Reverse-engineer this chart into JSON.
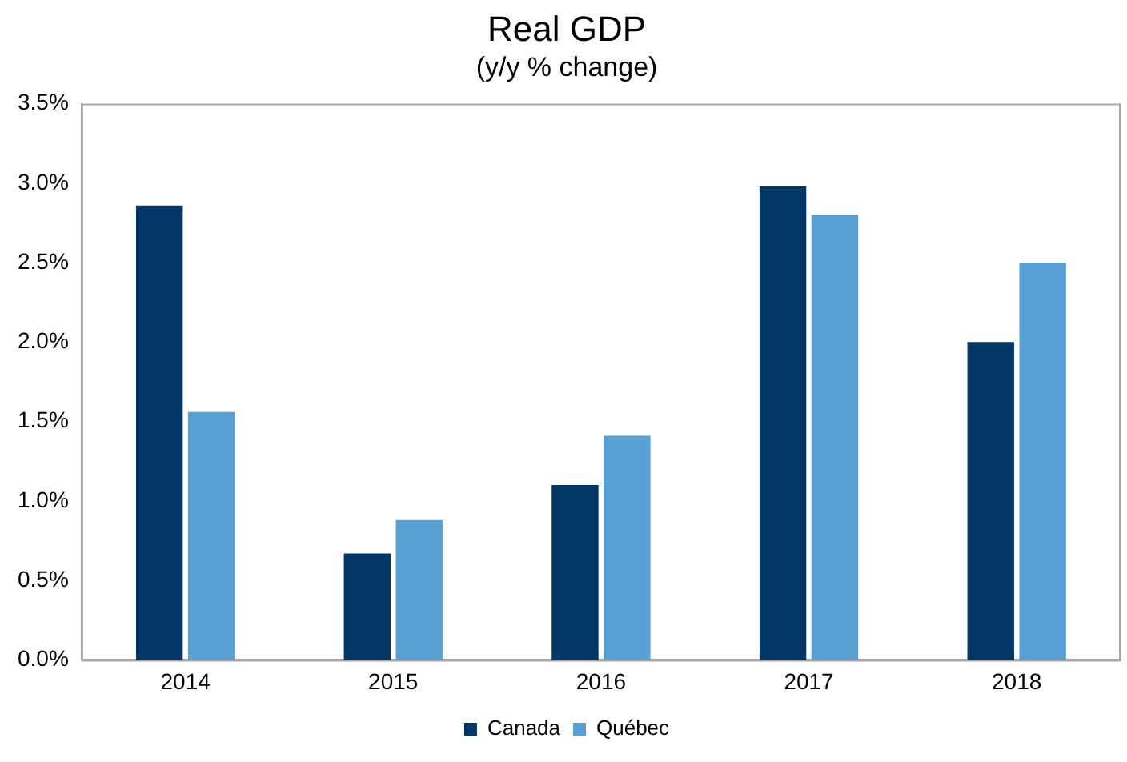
{
  "chart_data": {
    "type": "bar",
    "title": "Real GDP",
    "subtitle": "(y/y % change)",
    "categories": [
      "2014",
      "2015",
      "2016",
      "2017",
      "2018"
    ],
    "series": [
      {
        "name": "Canada",
        "color": "#003764",
        "values": [
          2.86,
          0.67,
          1.1,
          2.98,
          2.0
        ]
      },
      {
        "name": "Québec",
        "color": "#56a0d3",
        "values": [
          1.56,
          0.88,
          1.41,
          2.8,
          2.5
        ]
      }
    ],
    "ylim": [
      0,
      3.5
    ],
    "yticks": [
      {
        "value": 0,
        "label": "0.0%"
      },
      {
        "value": 0.5,
        "label": "0.5%"
      },
      {
        "value": 1,
        "label": "1.0%"
      },
      {
        "value": 1.5,
        "label": "1.5%"
      },
      {
        "value": 2,
        "label": "2.0%"
      },
      {
        "value": 2.5,
        "label": "2.5%"
      },
      {
        "value": 3,
        "label": "3.0%"
      },
      {
        "value": 3.5,
        "label": "3.5%"
      }
    ],
    "grid": false,
    "legend": "bottom"
  }
}
